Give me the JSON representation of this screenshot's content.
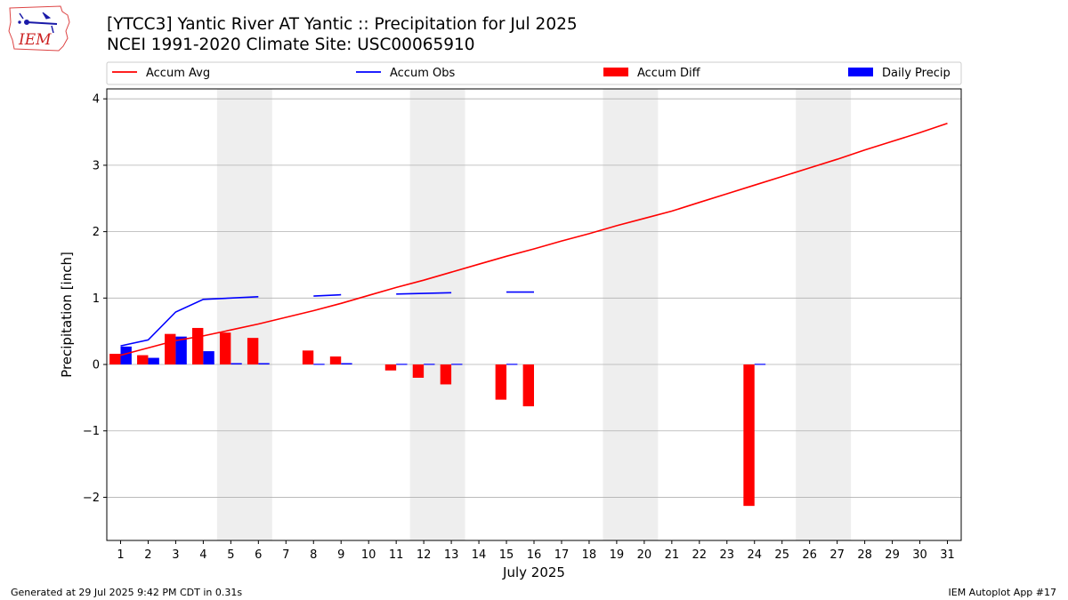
{
  "header": {
    "title_line1": "[YTCC3] Yantic River  AT Yantic :: Precipitation for Jul 2025",
    "title_line2": "NCEI 1991-2020 Climate Site: USC00065910"
  },
  "logo": {
    "text": "IEM",
    "icon": "iem-iowa-state-logo"
  },
  "footer": {
    "left": "Generated at 29 Jul 2025 9:42 PM CDT in 0.31s",
    "right": "IEM Autoplot App #17"
  },
  "colors": {
    "avg": "#ff0000",
    "obs": "#0000ff",
    "diff": "#ff0000",
    "daily": "#0000ff",
    "weekend_band": "#eeeeee",
    "grid": "#b0b0b0"
  },
  "chart_data": {
    "type": "bar",
    "xlabel": "July 2025",
    "ylabel": "Precipitation [inch]",
    "xlim": [
      0.5,
      31.5
    ],
    "ylim": [
      -2.65,
      4.15
    ],
    "yticks": [
      -2,
      -1,
      0,
      1,
      2,
      3,
      4
    ],
    "ytick_labels": [
      "−2",
      "−1",
      "0",
      "1",
      "2",
      "3",
      "4"
    ],
    "x": [
      1,
      2,
      3,
      4,
      5,
      6,
      7,
      8,
      9,
      10,
      11,
      12,
      13,
      14,
      15,
      16,
      17,
      18,
      19,
      20,
      21,
      22,
      23,
      24,
      25,
      26,
      27,
      28,
      29,
      30,
      31
    ],
    "grid": "y",
    "legend_placement": "top",
    "weekends": [
      [
        5,
        6
      ],
      [
        12,
        13
      ],
      [
        19,
        20
      ],
      [
        26,
        27
      ]
    ],
    "series": [
      {
        "name": "Accum Avg",
        "kind": "line",
        "values": [
          0.14,
          0.25,
          0.36,
          0.43,
          0.52,
          0.61,
          0.71,
          0.81,
          0.92,
          1.04,
          1.16,
          1.27,
          1.39,
          1.51,
          1.63,
          1.74,
          1.86,
          1.97,
          2.09,
          2.2,
          2.31,
          2.44,
          2.57,
          2.7,
          2.83,
          2.96,
          3.09,
          3.23,
          3.36,
          3.49,
          3.63
        ]
      },
      {
        "name": "Accum Obs",
        "kind": "line",
        "values": [
          0.28,
          0.37,
          0.79,
          0.98,
          1.0,
          1.02,
          null,
          1.03,
          1.05,
          null,
          1.06,
          1.07,
          1.08,
          null,
          1.09,
          1.09,
          null,
          null,
          null,
          null,
          null,
          null,
          null,
          null,
          null,
          null,
          null,
          null,
          null,
          null,
          null
        ]
      },
      {
        "name": "Accum Diff",
        "kind": "bar",
        "values": [
          0.16,
          0.14,
          0.46,
          0.55,
          0.48,
          0.4,
          null,
          0.21,
          0.12,
          null,
          -0.09,
          -0.2,
          -0.3,
          null,
          -0.53,
          -0.63,
          null,
          null,
          null,
          null,
          null,
          null,
          null,
          -2.13,
          null,
          null,
          null,
          null,
          null,
          null,
          null
        ]
      },
      {
        "name": "Daily Precip",
        "kind": "bar",
        "values": [
          0.27,
          0.1,
          0.42,
          0.2,
          0.02,
          0.02,
          null,
          0.01,
          0.02,
          null,
          0.01,
          0.01,
          0.01,
          null,
          0.01,
          null,
          null,
          null,
          null,
          null,
          null,
          null,
          null,
          0.01,
          null,
          null,
          null,
          null,
          null,
          null,
          null
        ]
      }
    ]
  }
}
